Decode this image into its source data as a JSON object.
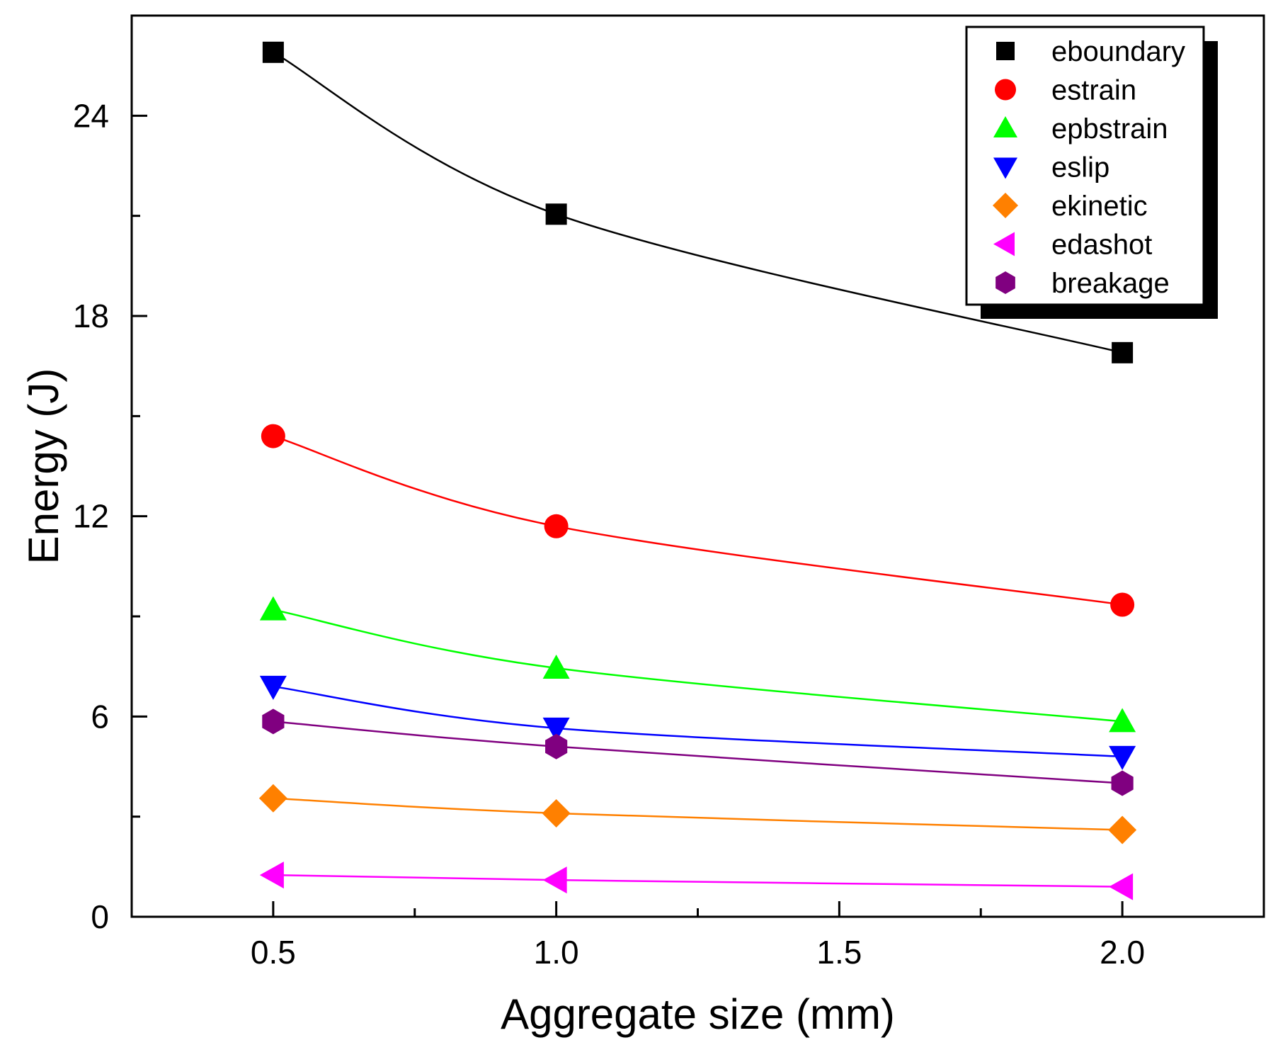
{
  "chart_data": {
    "type": "line",
    "title": "",
    "xlabel": "Aggregate size (mm)",
    "ylabel": "Energy (J)",
    "xlim": [
      0.25,
      2.25
    ],
    "ylim": [
      0,
      27
    ],
    "x_ticks": [
      0.5,
      1.0,
      1.5,
      2.0
    ],
    "x_tick_labels": [
      "0.5",
      "1.0",
      "1.5",
      "2.0"
    ],
    "x_minor_ticks": [
      0.75,
      1.25,
      1.75
    ],
    "y_ticks": [
      0,
      6,
      12,
      18,
      24
    ],
    "y_tick_labels": [
      "0",
      "6",
      "12",
      "18",
      "24"
    ],
    "y_minor_ticks": [
      3,
      9,
      15,
      21
    ],
    "grid": false,
    "legend_position": "top-right",
    "x": [
      0.5,
      1.0,
      2.0
    ],
    "series": [
      {
        "name": "eboundary",
        "values": [
          25.9,
          21.05,
          16.9
        ],
        "color": "#000000",
        "marker": "square"
      },
      {
        "name": "estrain",
        "values": [
          14.4,
          11.7,
          9.35
        ],
        "color": "#ff0000",
        "marker": "circle"
      },
      {
        "name": "epbstrain",
        "values": [
          9.2,
          7.45,
          5.85
        ],
        "color": "#00ff00",
        "marker": "triangle-up"
      },
      {
        "name": "eslip",
        "values": [
          6.9,
          5.65,
          4.8
        ],
        "color": "#0000ff",
        "marker": "triangle-down"
      },
      {
        "name": "ekinetic",
        "values": [
          3.55,
          3.1,
          2.6
        ],
        "color": "#ff8000",
        "marker": "diamond"
      },
      {
        "name": "edashot",
        "values": [
          1.25,
          1.1,
          0.9
        ],
        "color": "#ff00ff",
        "marker": "triangle-left"
      },
      {
        "name": "breakage",
        "values": [
          5.85,
          5.1,
          4.0
        ],
        "color": "#800080",
        "marker": "hexagon"
      }
    ]
  }
}
